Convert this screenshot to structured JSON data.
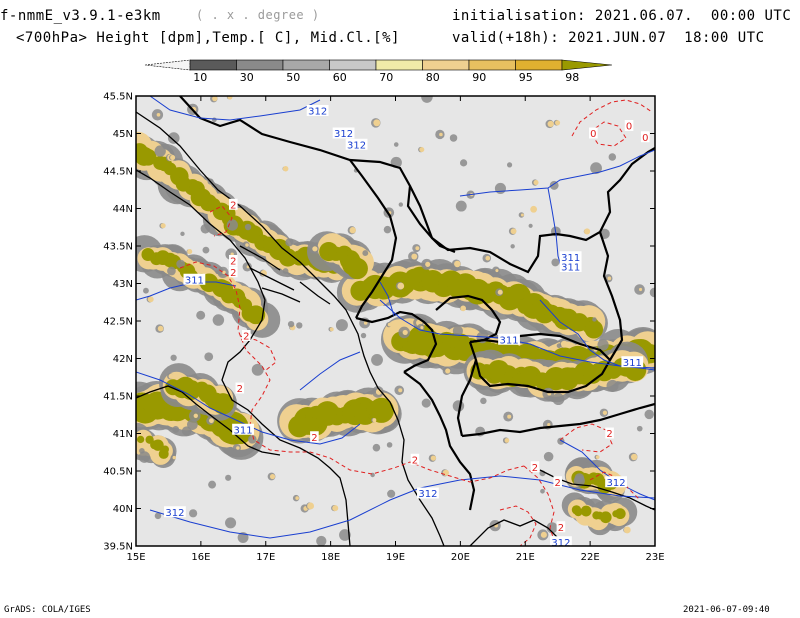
{
  "header": {
    "model": "f-nmmE_v3.9.1-e3km",
    "units": "( . x . degree )",
    "fields": "<700hPa> Height [dpm],Temp.[ C], Mid.Cl.[%]",
    "initialisation": "initialisation: 2021.06.07.  00:00 UTC",
    "valid": "valid(+18h): 2021.JUN.07  18:00 UTC"
  },
  "colorbar": {
    "labels": [
      "10",
      "30",
      "50",
      "60",
      "70",
      "80",
      "90",
      "95",
      "98"
    ],
    "colors": [
      "#5a5a5a",
      "#8a8a8a",
      "#a8a8a8",
      "#c8c8c8",
      "#f0eaa8",
      "#efd090",
      "#e8c060",
      "#e0b030",
      "#999900"
    ]
  },
  "map": {
    "lat_labels": [
      "45.5N",
      "45N",
      "44.5N",
      "44N",
      "43.5N",
      "43N",
      "42.5N",
      "42N",
      "41.5N",
      "41N",
      "40.5N",
      "40N",
      "39.5N"
    ],
    "lon_labels": [
      "15E",
      "16E",
      "17E",
      "18E",
      "19E",
      "20E",
      "21E",
      "22E",
      "23E"
    ],
    "lat_range": [
      39.5,
      45.5
    ],
    "lon_range": [
      15,
      23
    ],
    "background": "#e6e6e6",
    "cloud_colors": {
      "low": "#8a8a8a",
      "mid": "#efd090",
      "high": "#999900"
    },
    "contour_colors": {
      "height": "#1a3fd0",
      "temperature": "#e02020"
    },
    "height_labels": [
      {
        "text": "312",
        "lon": 17.8,
        "lat": 45.3
      },
      {
        "text": "312",
        "lon": 18.2,
        "lat": 45.0
      },
      {
        "text": "312",
        "lon": 18.4,
        "lat": 44.85
      },
      {
        "text": "311",
        "lon": 21.7,
        "lat": 43.35
      },
      {
        "text": "311",
        "lon": 21.7,
        "lat": 43.22
      },
      {
        "text": "311",
        "lon": 15.9,
        "lat": 43.05
      },
      {
        "text": "311",
        "lon": 20.75,
        "lat": 42.25
      },
      {
        "text": "311",
        "lon": 22.65,
        "lat": 41.95
      },
      {
        "text": "311",
        "lon": 16.65,
        "lat": 41.05
      },
      {
        "text": "312",
        "lon": 19.5,
        "lat": 40.2
      },
      {
        "text": "312",
        "lon": 22.4,
        "lat": 40.35
      },
      {
        "text": "312",
        "lon": 15.6,
        "lat": 39.95
      },
      {
        "text": "312",
        "lon": 21.55,
        "lat": 39.55
      }
    ],
    "temp_labels": [
      {
        "text": "0",
        "lon": 22.6,
        "lat": 45.1
      },
      {
        "text": "0",
        "lon": 22.05,
        "lat": 45.0
      },
      {
        "text": "0",
        "lon": 22.85,
        "lat": 44.95
      },
      {
        "text": "2",
        "lon": 16.5,
        "lat": 44.05
      },
      {
        "text": "2",
        "lon": 16.5,
        "lat": 43.3
      },
      {
        "text": "2",
        "lon": 16.5,
        "lat": 43.15
      },
      {
        "text": "2",
        "lon": 16.7,
        "lat": 42.3
      },
      {
        "text": "2",
        "lon": 16.6,
        "lat": 41.6
      },
      {
        "text": "2",
        "lon": 17.75,
        "lat": 40.95
      },
      {
        "text": "2",
        "lon": 19.3,
        "lat": 40.65
      },
      {
        "text": "2",
        "lon": 21.15,
        "lat": 40.55
      },
      {
        "text": "2",
        "lon": 22.3,
        "lat": 41.0
      },
      {
        "text": "2",
        "lon": 21.55,
        "lat": 39.75
      },
      {
        "text": "2",
        "lon": 21.5,
        "lat": 40.35
      }
    ]
  },
  "footer": {
    "left": "GrADS: COLA/IGES",
    "right": "2021-06-07-09:40"
  }
}
